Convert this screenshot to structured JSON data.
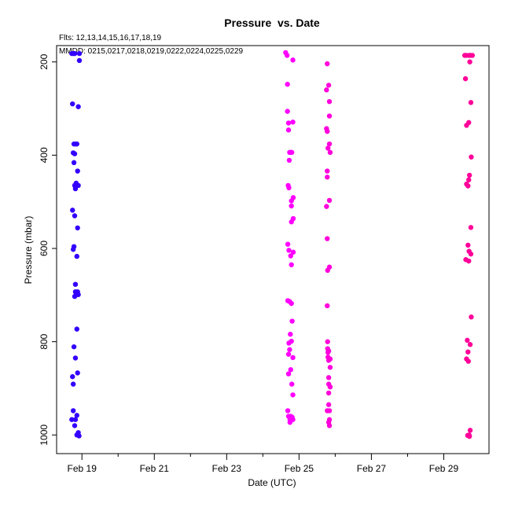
{
  "chart_data": {
    "type": "scatter",
    "title": "Pressure  vs. Date",
    "subtitle_flights": "Flts: 12,13,14,15,16,17,18,19",
    "subtitle_dates": "MMDD: 0215,0217,0218,0219,0222,0224,0225,0229",
    "xlabel": "Date (UTC)",
    "ylabel": "Pressure (mbar)",
    "x_tick_labels": [
      "Feb 19",
      "Feb 21",
      "Feb 23",
      "Feb 25",
      "Feb 27",
      "Feb 29"
    ],
    "x_tick_values": [
      19,
      21,
      23,
      25,
      27,
      29
    ],
    "x_minor_tick_values": [
      20,
      22,
      24,
      26,
      28
    ],
    "xlim": [
      18.3,
      30.25
    ],
    "y_tick_labels": [
      "200",
      "400",
      "600",
      "800",
      "1000"
    ],
    "y_tick_values": [
      200,
      400,
      600,
      800,
      1000
    ],
    "ylim": [
      1040,
      165
    ],
    "grid": false,
    "series": [
      {
        "color": "#3300ff",
        "points": [
          [
            18.72,
            182
          ],
          [
            18.76,
            182
          ],
          [
            18.8,
            182
          ],
          [
            18.93,
            182
          ],
          [
            18.93,
            197
          ],
          [
            18.74,
            290
          ],
          [
            18.9,
            296
          ],
          [
            18.78,
            376
          ],
          [
            18.82,
            376
          ],
          [
            18.86,
            376
          ],
          [
            18.76,
            395
          ],
          [
            18.8,
            397
          ],
          [
            18.78,
            416
          ],
          [
            18.88,
            434
          ],
          [
            18.84,
            460
          ],
          [
            18.8,
            465
          ],
          [
            18.9,
            465
          ],
          [
            18.82,
            472
          ],
          [
            18.74,
            518
          ],
          [
            18.8,
            530
          ],
          [
            18.88,
            556
          ],
          [
            18.78,
            596
          ],
          [
            18.76,
            602
          ],
          [
            18.86,
            617
          ],
          [
            18.82,
            677
          ],
          [
            18.82,
            693
          ],
          [
            18.88,
            693
          ],
          [
            18.84,
            699
          ],
          [
            18.8,
            703
          ],
          [
            18.9,
            699
          ],
          [
            18.86,
            773
          ],
          [
            18.78,
            811
          ],
          [
            18.82,
            835
          ],
          [
            18.88,
            867
          ],
          [
            18.74,
            875
          ],
          [
            18.76,
            891
          ],
          [
            18.76,
            948
          ],
          [
            18.86,
            958
          ],
          [
            18.72,
            967
          ],
          [
            18.82,
            967
          ],
          [
            18.8,
            980
          ],
          [
            18.9,
            995
          ],
          [
            18.86,
            1000
          ],
          [
            18.92,
            1002
          ]
        ]
      },
      {
        "color": "#ff00ff",
        "points": [
          [
            24.63,
            180
          ],
          [
            24.67,
            186
          ],
          [
            24.83,
            196
          ],
          [
            24.68,
            248
          ],
          [
            24.68,
            306
          ],
          [
            24.71,
            331
          ],
          [
            24.83,
            329
          ],
          [
            24.71,
            346
          ],
          [
            24.74,
            394
          ],
          [
            24.78,
            394
          ],
          [
            24.8,
            394
          ],
          [
            24.73,
            411
          ],
          [
            24.7,
            465
          ],
          [
            24.72,
            470
          ],
          [
            24.84,
            491
          ],
          [
            24.79,
            498
          ],
          [
            24.79,
            509
          ],
          [
            24.84,
            536
          ],
          [
            24.79,
            543
          ],
          [
            24.69,
            591
          ],
          [
            24.72,
            604
          ],
          [
            24.84,
            608
          ],
          [
            24.77,
            616
          ],
          [
            24.79,
            635
          ],
          [
            24.69,
            712
          ],
          [
            24.74,
            714
          ],
          [
            24.79,
            718
          ],
          [
            24.81,
            756
          ],
          [
            24.76,
            784
          ],
          [
            24.79,
            799
          ],
          [
            24.72,
            803
          ],
          [
            24.74,
            817
          ],
          [
            24.71,
            827
          ],
          [
            24.83,
            834
          ],
          [
            24.77,
            860
          ],
          [
            24.71,
            869
          ],
          [
            24.8,
            891
          ],
          [
            24.83,
            914
          ],
          [
            24.69,
            948
          ],
          [
            24.71,
            960
          ],
          [
            24.77,
            960
          ],
          [
            24.81,
            962
          ],
          [
            24.75,
            967
          ],
          [
            24.83,
            967
          ],
          [
            24.75,
            973
          ]
        ]
      },
      {
        "color": "#ff00dd",
        "points": [
          [
            25.78,
            204
          ],
          [
            25.82,
            250
          ],
          [
            25.76,
            260
          ],
          [
            25.84,
            285
          ],
          [
            25.84,
            316
          ],
          [
            25.76,
            343
          ],
          [
            25.78,
            349
          ],
          [
            25.84,
            376
          ],
          [
            25.8,
            385
          ],
          [
            25.86,
            394
          ],
          [
            25.78,
            434
          ],
          [
            25.78,
            447
          ],
          [
            25.84,
            497
          ],
          [
            25.76,
            510
          ],
          [
            25.78,
            579
          ],
          [
            25.84,
            640
          ],
          [
            25.79,
            647
          ],
          [
            25.78,
            723
          ],
          [
            25.79,
            800
          ],
          [
            25.79,
            815
          ],
          [
            25.82,
            820
          ],
          [
            25.8,
            823
          ],
          [
            25.8,
            833
          ],
          [
            25.86,
            837
          ],
          [
            25.82,
            840
          ],
          [
            25.86,
            855
          ],
          [
            25.82,
            877
          ],
          [
            25.82,
            891
          ],
          [
            25.86,
            897
          ],
          [
            25.82,
            910
          ],
          [
            25.82,
            935
          ],
          [
            25.78,
            948
          ],
          [
            25.84,
            948
          ],
          [
            25.84,
            967
          ],
          [
            25.82,
            973
          ],
          [
            25.84,
            980
          ]
        ]
      },
      {
        "color": "#ff0099",
        "points": [
          [
            29.58,
            186
          ],
          [
            29.62,
            186
          ],
          [
            29.7,
            186
          ],
          [
            29.74,
            186
          ],
          [
            29.79,
            186
          ],
          [
            29.72,
            200
          ],
          [
            29.6,
            236
          ],
          [
            29.75,
            287
          ],
          [
            29.69,
            330
          ],
          [
            29.63,
            336
          ],
          [
            29.76,
            404
          ],
          [
            29.71,
            443
          ],
          [
            29.69,
            453
          ],
          [
            29.63,
            462
          ],
          [
            29.67,
            466
          ],
          [
            29.75,
            555
          ],
          [
            29.67,
            593
          ],
          [
            29.7,
            606
          ],
          [
            29.75,
            612
          ],
          [
            29.61,
            624
          ],
          [
            29.69,
            627
          ],
          [
            29.76,
            747
          ],
          [
            29.65,
            797
          ],
          [
            29.73,
            806
          ],
          [
            29.67,
            822
          ],
          [
            29.63,
            837
          ],
          [
            29.68,
            842
          ],
          [
            29.73,
            990
          ],
          [
            29.66,
            1001
          ],
          [
            29.7,
            1000
          ],
          [
            29.71,
            1003
          ]
        ]
      }
    ]
  }
}
